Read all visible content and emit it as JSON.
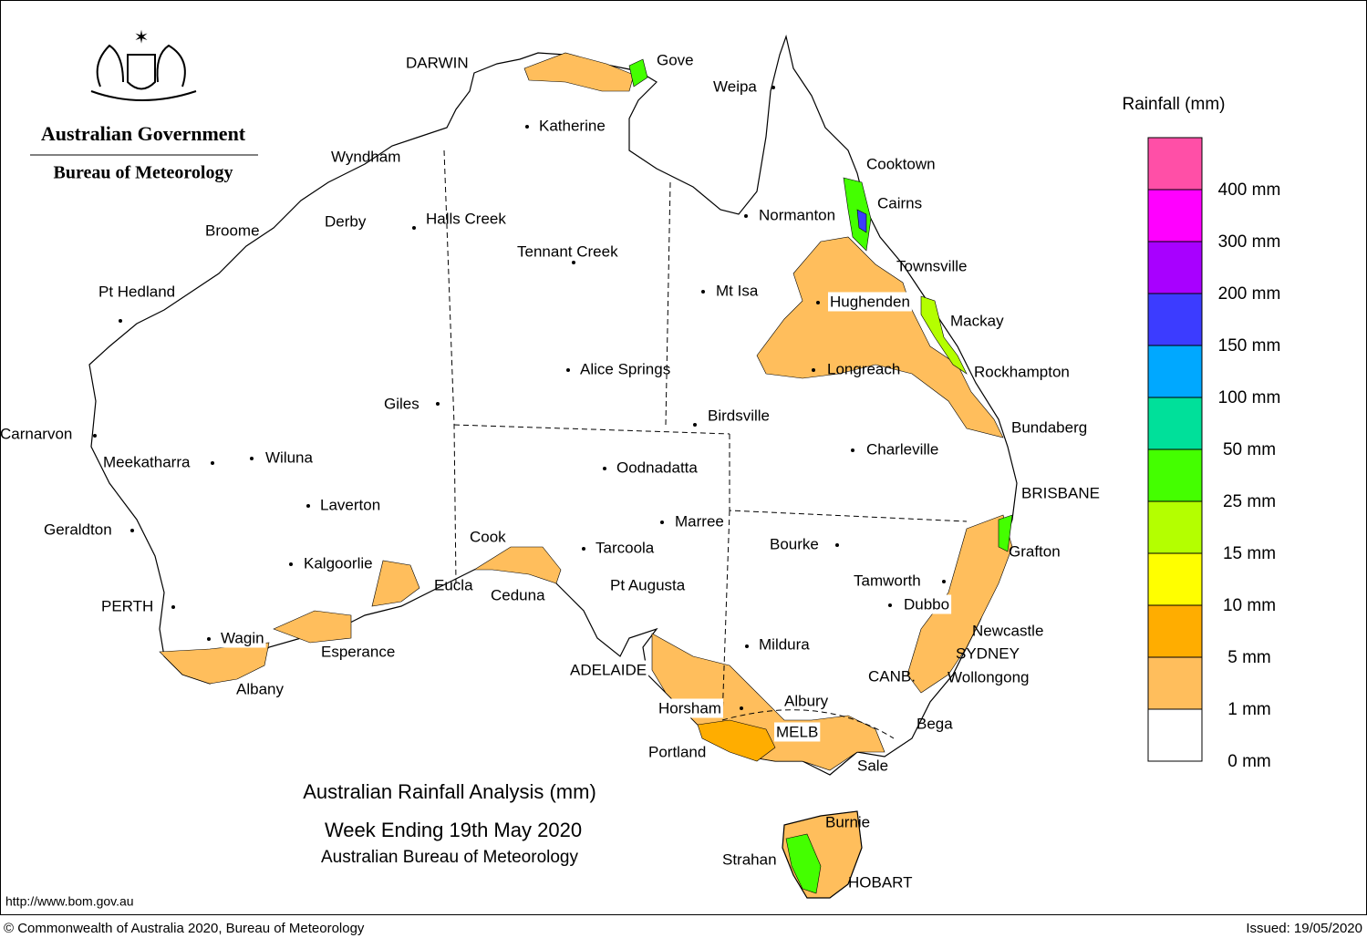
{
  "header": {
    "government": "Australian Government",
    "agency": "Bureau of Meteorology"
  },
  "title": {
    "line1": "Australian Rainfall Analysis (mm)",
    "line2": "Week Ending 19th May 2020",
    "line3": "Australian Bureau of Meteorology"
  },
  "legend": {
    "title": "Rainfall (mm)",
    "colors": [
      "#ff4fa7",
      "#ff00ff",
      "#a800ff",
      "#3c3cff",
      "#00a8ff",
      "#00e09a",
      "#44ff00",
      "#b4ff00",
      "#ffff00",
      "#ffad00",
      "#ffbe5c",
      "#ffffff"
    ],
    "labels": [
      "400 mm",
      "300 mm",
      "200 mm",
      "150 mm",
      "100 mm",
      "50 mm",
      "25 mm",
      "15 mm",
      "10 mm",
      "5 mm",
      "1 mm",
      "0 mm"
    ]
  },
  "cities": [
    "DARWIN",
    "Gove",
    "Weipa",
    "Katherine",
    "Cooktown",
    "Wyndham",
    "Cairns",
    "Normanton",
    "Derby",
    "Halls Creek",
    "Broome",
    "Tennant Creek",
    "Townsville",
    "Pt Hedland",
    "Mt Isa",
    "Hughenden",
    "Mackay",
    "Alice Springs",
    "Longreach",
    "Rockhampton",
    "Giles",
    "Birdsville",
    "Bundaberg",
    "Carnarvon",
    "Charleville",
    "Meekatharra",
    "Wiluna",
    "Oodnadatta",
    "BRISBANE",
    "Laverton",
    "Marree",
    "Geraldton",
    "Cook",
    "Bourke",
    "Tarcoola",
    "Grafton",
    "Kalgoorlie",
    "Tamworth",
    "Eucla",
    "Pt Augusta",
    "Ceduna",
    "Dubbo",
    "PERTH",
    "Newcastle",
    "Wagin",
    "Mildura",
    "Esperance",
    "SYDNEY",
    "ADELAIDE",
    "CANB.",
    "Wollongong",
    "Albany",
    "Albury",
    "Horsham",
    "Bega",
    "MELB",
    "Portland",
    "Sale",
    "Burnie",
    "Strahan",
    "HOBART"
  ],
  "footer": {
    "url": "http://www.bom.gov.au",
    "copyright": "© Commonwealth of Australia 2020, Bureau of Meteorology",
    "issued": "Issued: 19/05/2020"
  }
}
